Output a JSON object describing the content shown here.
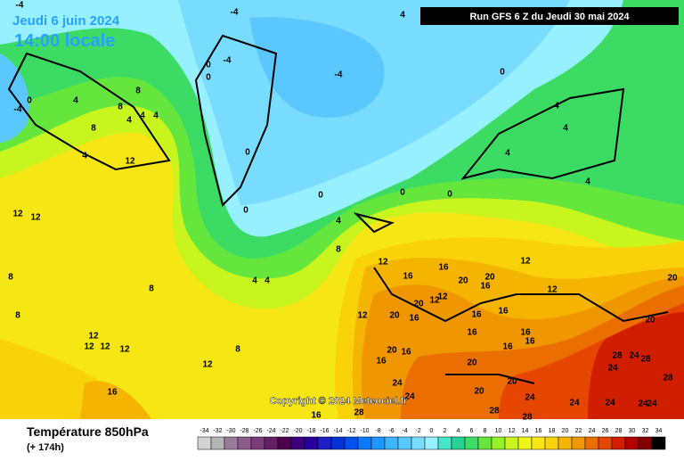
{
  "header": {
    "date": "Jeudi 6 juin 2024",
    "time": "14:00 locale",
    "run": "Run GFS 6 Z du Jeudi 30 mai 2024"
  },
  "copyright": "Copyright © 2024 Meteociel.fr",
  "footer": {
    "title": "Température 850hPa",
    "subtitle": "(+ 174h)"
  },
  "scale": {
    "ticks": [
      -34,
      -32,
      -30,
      -28,
      -26,
      -24,
      -22,
      -20,
      -18,
      -16,
      -14,
      -12,
      -10,
      -8,
      -6,
      -4,
      -2,
      0,
      2,
      4,
      6,
      8,
      10,
      12,
      14,
      16,
      18,
      20,
      22,
      24,
      26,
      28,
      30,
      32,
      34
    ],
    "colors": [
      "#d2d2d2",
      "#b4b4b4",
      "#9b7a9b",
      "#8c5a8c",
      "#7a3c7a",
      "#641e64",
      "#500050",
      "#3c0078",
      "#2800a0",
      "#1e1ec8",
      "#0032dc",
      "#0050f0",
      "#0a78ff",
      "#1e96ff",
      "#3cb4ff",
      "#5ac8ff",
      "#78dcff",
      "#96f0ff",
      "#46e6c8",
      "#28d296",
      "#3cdc64",
      "#64e63c",
      "#96f028",
      "#c8f51e",
      "#f0f514",
      "#fae614",
      "#fad20a",
      "#f5b400",
      "#f09600",
      "#eb6e00",
      "#e64600",
      "#d21e00",
      "#b40000",
      "#820000",
      "#000000"
    ]
  },
  "map_labels": [
    -4,
    4,
    -4,
    -4,
    0,
    0,
    4,
    -4,
    8,
    8,
    4,
    4,
    4,
    8,
    4,
    12,
    0,
    -4,
    0,
    0,
    0,
    0,
    0,
    0,
    4,
    4,
    4,
    4,
    4,
    12,
    12,
    8,
    4,
    4,
    8,
    8,
    8,
    12,
    12,
    12,
    12,
    8,
    12,
    16,
    12,
    16,
    16,
    20,
    20,
    16,
    12,
    12,
    20,
    12,
    12,
    16,
    12,
    20,
    16,
    16,
    16,
    16,
    16,
    16,
    16,
    20,
    16,
    20,
    24,
    24,
    20,
    20,
    24,
    24,
    24,
    24,
    24,
    28,
    24,
    28,
    24,
    28,
    20,
    20,
    28,
    28,
    28,
    16
  ]
}
